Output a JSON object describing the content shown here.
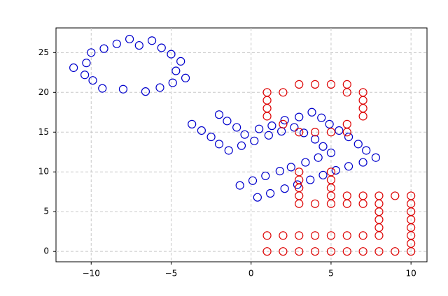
{
  "chart_data": {
    "type": "scatter",
    "xlim": [
      -12.2,
      11.0
    ],
    "ylim": [
      -1.3,
      28.1
    ],
    "xticks": [
      {
        "value": -10,
        "label": "−10"
      },
      {
        "value": -5,
        "label": "−5"
      },
      0,
      5,
      10
    ],
    "yticks": [
      0,
      5,
      10,
      15,
      20,
      25
    ],
    "grid": true,
    "series": [
      {
        "color": "#0000cc",
        "x": [
          -11.1,
          -10.4,
          -10.3,
          -10.0,
          -9.9,
          -9.3,
          -9.2,
          -8.4,
          -8.0,
          -7.6,
          -7.0,
          -6.6,
          -6.2,
          -5.7,
          -5.6,
          -5.0,
          -4.9,
          -4.7,
          -4.4,
          -4.1,
          -3.7,
          -3.1,
          -2.5,
          -2.0,
          -1.4,
          -2.0,
          -1.5,
          -0.9,
          -0.4,
          -0.6,
          0.2,
          0.5,
          1.1,
          1.3,
          1.9,
          2.1,
          2.7,
          3.0,
          3.3,
          3.8,
          4.0,
          4.4,
          4.5,
          4.9,
          5.0,
          5.5,
          6.1,
          6.7,
          7.2,
          7.8,
          -0.7,
          0.1,
          0.4,
          0.9,
          1.2,
          1.8,
          2.1,
          2.5,
          2.9,
          3.4,
          3.7,
          4.2,
          4.5,
          5.3,
          6.1,
          7.0
        ],
        "values": [
          23.1,
          22.2,
          23.7,
          25.0,
          21.5,
          20.5,
          25.5,
          26.1,
          20.4,
          26.7,
          25.9,
          20.1,
          26.5,
          20.6,
          25.6,
          24.8,
          21.2,
          22.7,
          23.9,
          21.8,
          16.0,
          15.2,
          14.4,
          13.5,
          12.7,
          17.2,
          16.4,
          15.6,
          14.7,
          13.3,
          13.9,
          15.4,
          14.6,
          15.8,
          15.1,
          16.5,
          15.6,
          16.9,
          14.9,
          17.5,
          14.1,
          16.8,
          13.2,
          16.0,
          12.4,
          15.2,
          14.4,
          13.5,
          12.7,
          11.8,
          8.3,
          8.9,
          6.8,
          9.5,
          7.3,
          10.1,
          7.9,
          10.6,
          8.4,
          11.2,
          9.0,
          11.8,
          9.6,
          10.2,
          10.7,
          11.2
        ]
      },
      {
        "color": "#dd0000",
        "x": [
          1,
          1,
          1,
          1,
          2,
          3,
          4,
          5,
          6,
          6,
          7,
          7,
          7,
          7,
          2,
          3,
          4,
          5,
          6,
          6,
          3,
          3,
          3,
          3,
          3,
          4,
          5,
          5,
          5,
          5,
          5,
          6,
          6,
          7,
          7,
          8,
          8,
          8,
          8,
          8,
          8,
          9,
          10,
          10,
          10,
          10,
          10,
          10,
          10,
          10,
          1,
          2,
          3,
          4,
          5,
          6,
          7,
          1,
          2,
          3,
          4,
          5,
          6,
          7,
          8,
          9
        ],
        "values": [
          20,
          19,
          18,
          17,
          20,
          21,
          21,
          21,
          21,
          20,
          20,
          19,
          18,
          17,
          16,
          15,
          15,
          15,
          16,
          15,
          10,
          9,
          8,
          7,
          6,
          6,
          10,
          9,
          8,
          7,
          6,
          7,
          6,
          7,
          6,
          7,
          6,
          5,
          4,
          3,
          2,
          7,
          7,
          6,
          5,
          4,
          3,
          2,
          1,
          0,
          2,
          2,
          2,
          2,
          2,
          2,
          2,
          0,
          0,
          0,
          0,
          0,
          0,
          0,
          0,
          0
        ]
      }
    ]
  }
}
